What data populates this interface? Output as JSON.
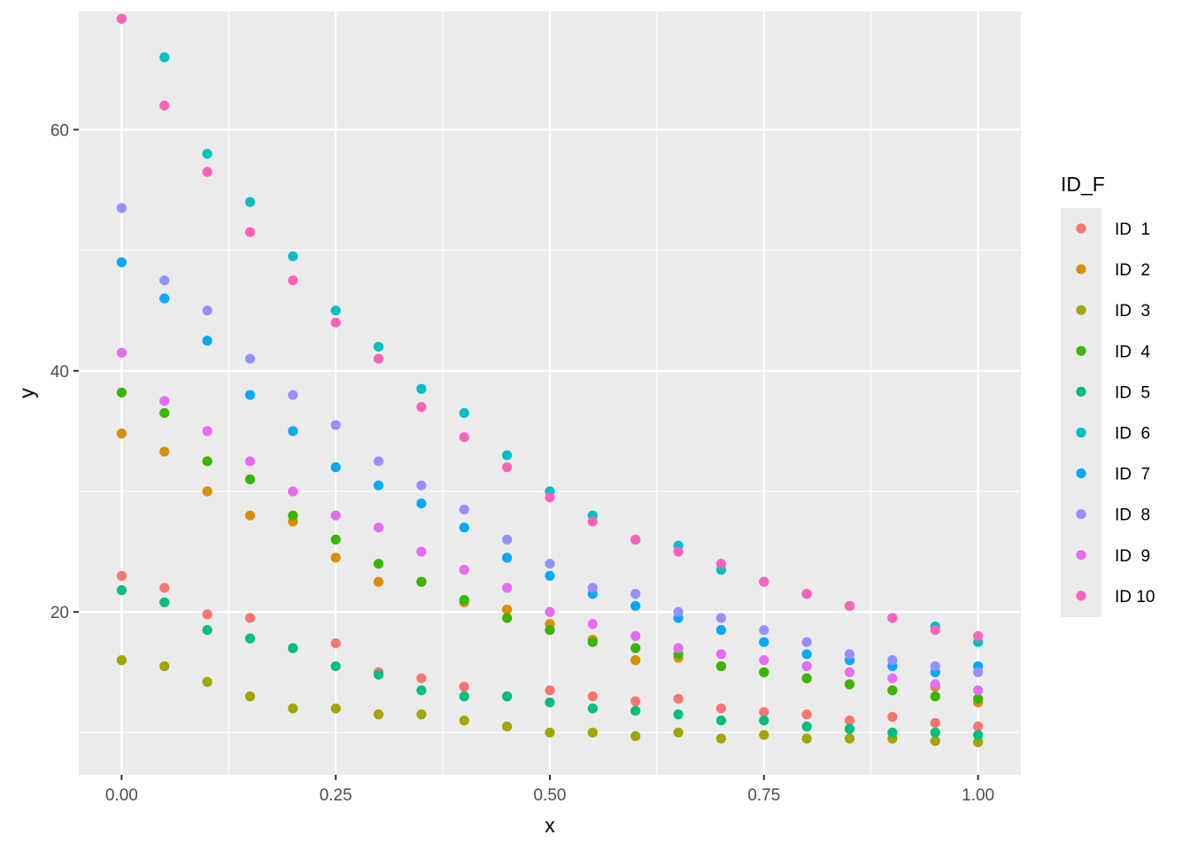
{
  "chart_data": {
    "type": "scatter",
    "xlabel": "x",
    "ylabel": "y",
    "xlim": [
      -0.05,
      1.05
    ],
    "ylim": [
      6.5,
      69.8
    ],
    "x_ticks": [
      0.0,
      0.25,
      0.5,
      0.75,
      1.0
    ],
    "x_tick_labels": [
      "0.00",
      "0.25",
      "0.50",
      "0.75",
      "1.00"
    ],
    "y_ticks": [
      20,
      40,
      60
    ],
    "y_tick_labels": [
      "20",
      "40",
      "60"
    ],
    "grid": true,
    "legend": {
      "title": "ID_F",
      "position": "right"
    },
    "series": [
      {
        "name": "ID  1",
        "color": "#F8766D",
        "x": [
          0.0,
          0.05,
          0.1,
          0.15,
          0.2,
          0.25,
          0.3,
          0.35,
          0.4,
          0.45,
          0.5,
          0.55,
          0.6,
          0.65,
          0.7,
          0.75,
          0.8,
          0.85,
          0.9,
          0.95,
          1.0
        ],
        "y": [
          23.0,
          22.0,
          19.8,
          19.5,
          17.0,
          17.4,
          15.0,
          14.5,
          13.8,
          13.0,
          13.5,
          13.0,
          12.6,
          12.8,
          12.0,
          11.7,
          11.5,
          11.0,
          11.3,
          10.8,
          10.5
        ]
      },
      {
        "name": "ID  2",
        "color": "#D89000",
        "x": [
          0.0,
          0.05,
          0.1,
          0.15,
          0.2,
          0.25,
          0.3,
          0.35,
          0.4,
          0.45,
          0.5,
          0.55,
          0.6,
          0.65,
          0.7,
          0.75,
          0.8,
          0.85,
          0.9,
          0.95,
          1.0
        ],
        "y": [
          34.8,
          33.3,
          30.0,
          28.0,
          27.5,
          24.5,
          22.5,
          22.5,
          20.8,
          20.2,
          19.0,
          17.7,
          16.0,
          16.2,
          15.5,
          15.0,
          14.5,
          14.0,
          13.5,
          13.8,
          12.5
        ]
      },
      {
        "name": "ID  3",
        "color": "#A3A500",
        "x": [
          0.0,
          0.05,
          0.1,
          0.15,
          0.2,
          0.25,
          0.3,
          0.35,
          0.4,
          0.45,
          0.5,
          0.55,
          0.6,
          0.65,
          0.7,
          0.75,
          0.8,
          0.85,
          0.9,
          0.95,
          1.0
        ],
        "y": [
          16.0,
          15.5,
          14.2,
          13.0,
          12.0,
          12.0,
          11.5,
          11.5,
          11.0,
          10.5,
          10.0,
          10.0,
          9.7,
          10.0,
          9.5,
          9.8,
          9.5,
          9.5,
          9.5,
          9.3,
          9.2
        ]
      },
      {
        "name": "ID  4",
        "color": "#39B600",
        "x": [
          0.0,
          0.05,
          0.1,
          0.15,
          0.2,
          0.25,
          0.3,
          0.35,
          0.4,
          0.45,
          0.5,
          0.55,
          0.6,
          0.65,
          0.7,
          0.75,
          0.8,
          0.85,
          0.9,
          0.95,
          1.0
        ],
        "y": [
          38.2,
          36.5,
          32.5,
          31.0,
          28.0,
          26.0,
          24.0,
          22.5,
          21.0,
          19.5,
          18.5,
          17.5,
          17.0,
          16.5,
          15.5,
          15.0,
          14.5,
          14.0,
          13.5,
          13.0,
          12.8
        ]
      },
      {
        "name": "ID  5",
        "color": "#00BF7D",
        "x": [
          0.0,
          0.05,
          0.1,
          0.15,
          0.2,
          0.25,
          0.3,
          0.35,
          0.4,
          0.45,
          0.5,
          0.55,
          0.6,
          0.65,
          0.7,
          0.75,
          0.8,
          0.85,
          0.9,
          0.95,
          1.0
        ],
        "y": [
          21.8,
          20.8,
          18.5,
          17.8,
          17.0,
          15.5,
          14.8,
          13.5,
          13.0,
          13.0,
          12.5,
          12.0,
          11.8,
          11.5,
          11.0,
          11.0,
          10.5,
          10.3,
          10.0,
          10.0,
          9.8
        ]
      },
      {
        "name": "ID  6",
        "color": "#00BFC4",
        "x": [
          0.0,
          0.05,
          0.1,
          0.15,
          0.2,
          0.25,
          0.3,
          0.35,
          0.4,
          0.45,
          0.5,
          0.55,
          0.6,
          0.65,
          0.7,
          0.75,
          0.8,
          0.85,
          0.9,
          0.95,
          1.0
        ],
        "y": [
          69.2,
          66.0,
          58.0,
          54.0,
          49.5,
          45.0,
          42.0,
          38.5,
          36.5,
          33.0,
          30.0,
          28.0,
          26.0,
          25.5,
          23.5,
          22.5,
          21.5,
          20.5,
          19.5,
          18.8,
          17.5
        ]
      },
      {
        "name": "ID  7",
        "color": "#00A9FF",
        "x": [
          0.0,
          0.05,
          0.1,
          0.15,
          0.2,
          0.25,
          0.3,
          0.35,
          0.4,
          0.45,
          0.5,
          0.55,
          0.6,
          0.65,
          0.7,
          0.75,
          0.8,
          0.85,
          0.9,
          0.95,
          1.0
        ],
        "y": [
          49.0,
          46.0,
          42.5,
          38.0,
          35.0,
          32.0,
          30.5,
          29.0,
          27.0,
          24.5,
          23.0,
          21.5,
          20.5,
          19.5,
          18.5,
          17.5,
          16.5,
          16.0,
          15.5,
          15.0,
          15.5
        ]
      },
      {
        "name": "ID  8",
        "color": "#9590FF",
        "x": [
          0.0,
          0.05,
          0.1,
          0.15,
          0.2,
          0.25,
          0.3,
          0.35,
          0.4,
          0.45,
          0.5,
          0.55,
          0.6,
          0.65,
          0.7,
          0.75,
          0.8,
          0.85,
          0.9,
          0.95,
          1.0
        ],
        "y": [
          53.5,
          47.5,
          45.0,
          41.0,
          38.0,
          35.5,
          32.5,
          30.5,
          28.5,
          26.0,
          24.0,
          22.0,
          21.5,
          20.0,
          19.5,
          18.5,
          17.5,
          16.5,
          16.0,
          15.5,
          15.0
        ]
      },
      {
        "name": "ID  9",
        "color": "#E76BF3",
        "x": [
          0.0,
          0.05,
          0.1,
          0.15,
          0.2,
          0.25,
          0.3,
          0.35,
          0.4,
          0.45,
          0.5,
          0.55,
          0.6,
          0.65,
          0.7,
          0.75,
          0.8,
          0.85,
          0.9,
          0.95,
          1.0
        ],
        "y": [
          41.5,
          37.5,
          35.0,
          32.5,
          30.0,
          28.0,
          27.0,
          25.0,
          23.5,
          22.0,
          20.0,
          19.0,
          18.0,
          17.0,
          16.5,
          16.0,
          15.5,
          15.0,
          14.5,
          14.0,
          13.5
        ]
      },
      {
        "name": "ID 10",
        "color": "#FF62BC",
        "x": [
          0.0,
          0.05,
          0.1,
          0.15,
          0.2,
          0.25,
          0.3,
          0.35,
          0.4,
          0.45,
          0.5,
          0.55,
          0.6,
          0.65,
          0.7,
          0.75,
          0.8,
          0.85,
          0.9,
          0.95,
          1.0
        ],
        "y": [
          69.2,
          62.0,
          56.5,
          51.5,
          47.5,
          44.0,
          41.0,
          37.0,
          34.5,
          32.0,
          29.5,
          27.5,
          26.0,
          25.0,
          24.0,
          22.5,
          21.5,
          20.5,
          19.5,
          18.5,
          18.0
        ]
      }
    ]
  }
}
